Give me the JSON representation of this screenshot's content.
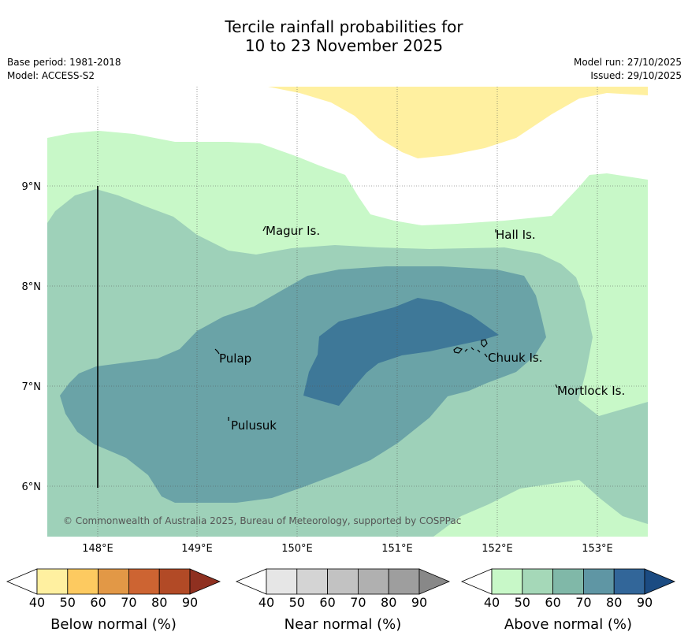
{
  "title": {
    "line1": "Tercile rainfall probabilities for",
    "line2": "10 to 23 November 2025"
  },
  "meta_left": {
    "base_period": "Base period: 1981-2018",
    "model": "Model: ACCESS-S2"
  },
  "meta_right": {
    "model_run": "Model run: 27/10/2025",
    "issued": "Issued: 29/10/2025"
  },
  "map": {
    "lon_labels": [
      "148°E",
      "149°E",
      "150°E",
      "151°E",
      "152°E",
      "153°E"
    ],
    "lat_labels": [
      "9°N",
      "8°N",
      "7°N",
      "6°N"
    ],
    "places": [
      "Magur Is.",
      "Hall Is.",
      "Pulap",
      "Chuuk Is.",
      "Mortlock Is.",
      "Pulusuk"
    ],
    "copyright": "© Commonwealth of Australia 2025, Bureau of Meteorology, supported by COSPPac"
  },
  "colorbars": [
    {
      "name": "Below normal (%)",
      "ticks": [
        "40",
        "50",
        "60",
        "70",
        "80",
        "90"
      ],
      "colors": [
        "#fff0a0",
        "#fdca60",
        "#e29846",
        "#cd6432",
        "#b24a26",
        "#8f3020"
      ]
    },
    {
      "name": "Near normal (%)",
      "ticks": [
        "40",
        "50",
        "60",
        "70",
        "80",
        "90"
      ],
      "colors": [
        "#e6e6e6",
        "#d4d4d4",
        "#c2c2c2",
        "#b0b0b0",
        "#9e9e9e",
        "#888888"
      ]
    },
    {
      "name": "Above normal (%)",
      "ticks": [
        "40",
        "50",
        "60",
        "70",
        "80",
        "90"
      ],
      "colors": [
        "#c8f8c8",
        "#a5d8b8",
        "#80b8a8",
        "#5f96a4",
        "#326699",
        "#1b4b82"
      ]
    }
  ],
  "fills": {
    "below_40": "#fff0a0",
    "above_40": "#c8f8c8",
    "above_50": "#9ed1b9",
    "above_60": "#6aa3a7",
    "above_70": "#3e7898"
  }
}
